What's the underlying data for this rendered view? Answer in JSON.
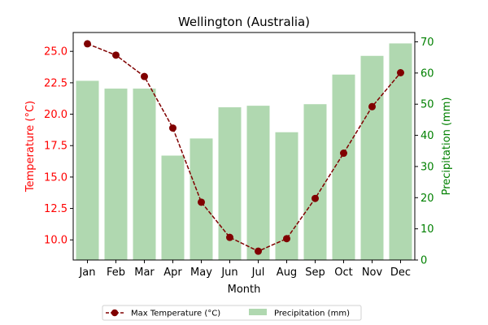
{
  "chart_data": {
    "type": "bar",
    "title": "Wellington (Australia)",
    "xlabel": "Month",
    "categories": [
      "Jan",
      "Feb",
      "Mar",
      "Apr",
      "May",
      "Jun",
      "Jul",
      "Aug",
      "Sep",
      "Oct",
      "Nov",
      "Dec"
    ],
    "series": [
      {
        "name": "Max Temperature (°C)",
        "kind": "line",
        "axis": "left",
        "color": "#800000",
        "values": [
          25.6,
          24.7,
          23.0,
          18.9,
          13.0,
          10.2,
          9.1,
          10.1,
          13.3,
          16.9,
          20.6,
          23.3
        ]
      },
      {
        "name": "Precipitation (mm)",
        "kind": "bar",
        "axis": "right",
        "color": "#b0d8b0",
        "values": [
          57.5,
          55.0,
          55.0,
          33.5,
          39.0,
          49.0,
          49.5,
          41.0,
          50.0,
          59.5,
          65.5,
          69.5
        ]
      }
    ],
    "y_left": {
      "label": "Temperature (°C)",
      "color": "#ff0000",
      "ylim": [
        8.4,
        26.5
      ],
      "ticks": [
        10.0,
        12.5,
        15.0,
        17.5,
        20.0,
        22.5,
        25.0
      ],
      "tick_labels": [
        "10.0",
        "12.5",
        "15.0",
        "17.5",
        "20.0",
        "22.5",
        "25.0"
      ]
    },
    "y_right": {
      "label": "Precipitation (mm)",
      "color": "#008000",
      "ylim": [
        0,
        73
      ],
      "ticks": [
        0,
        10,
        20,
        30,
        40,
        50,
        60,
        70
      ],
      "tick_labels": [
        "0",
        "10",
        "20",
        "30",
        "40",
        "50",
        "60",
        "70"
      ]
    },
    "legend_placement": "bottom-center",
    "grid": false
  }
}
